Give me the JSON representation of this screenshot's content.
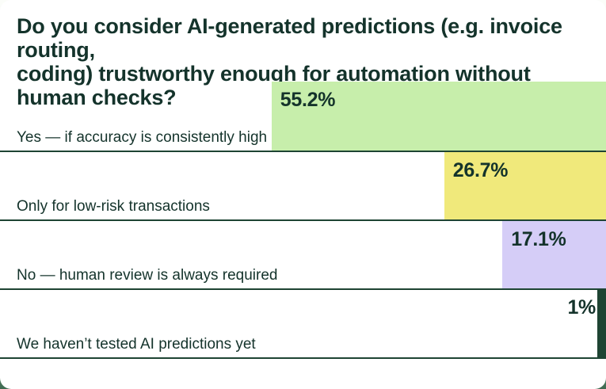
{
  "header": {
    "title_lines": [
      "Do you consider AI-generated predictions (e.g. invoice routing,",
      "coding) trustworthy enough for automation without",
      "human checks?"
    ]
  },
  "chart_data": {
    "type": "bar",
    "orientation": "horizontal",
    "bar_alignment": "right",
    "title": "Do you consider AI-generated predictions (e.g. invoice routing, coding) trustworthy enough for automation without human checks?",
    "categories": [
      "Yes — if accuracy is consistently high",
      "Only for low-risk transactions",
      "No — human review is always required",
      "We haven’t tested AI predictions yet"
    ],
    "values": [
      55.2,
      26.7,
      17.1,
      1
    ],
    "value_labels": [
      "55.2%",
      "26.7%",
      "17.1%",
      "1%"
    ],
    "colors": [
      "#c7eeab",
      "#f0e97b",
      "#d5cdf7",
      "#1e4433"
    ],
    "xlim": [
      0,
      100
    ],
    "grid": false,
    "legend": false
  },
  "colors": {
    "text": "#14332b",
    "separator": "#1e4433",
    "card_background": "#ffffff",
    "backdrop_green": "#3f6a51"
  }
}
